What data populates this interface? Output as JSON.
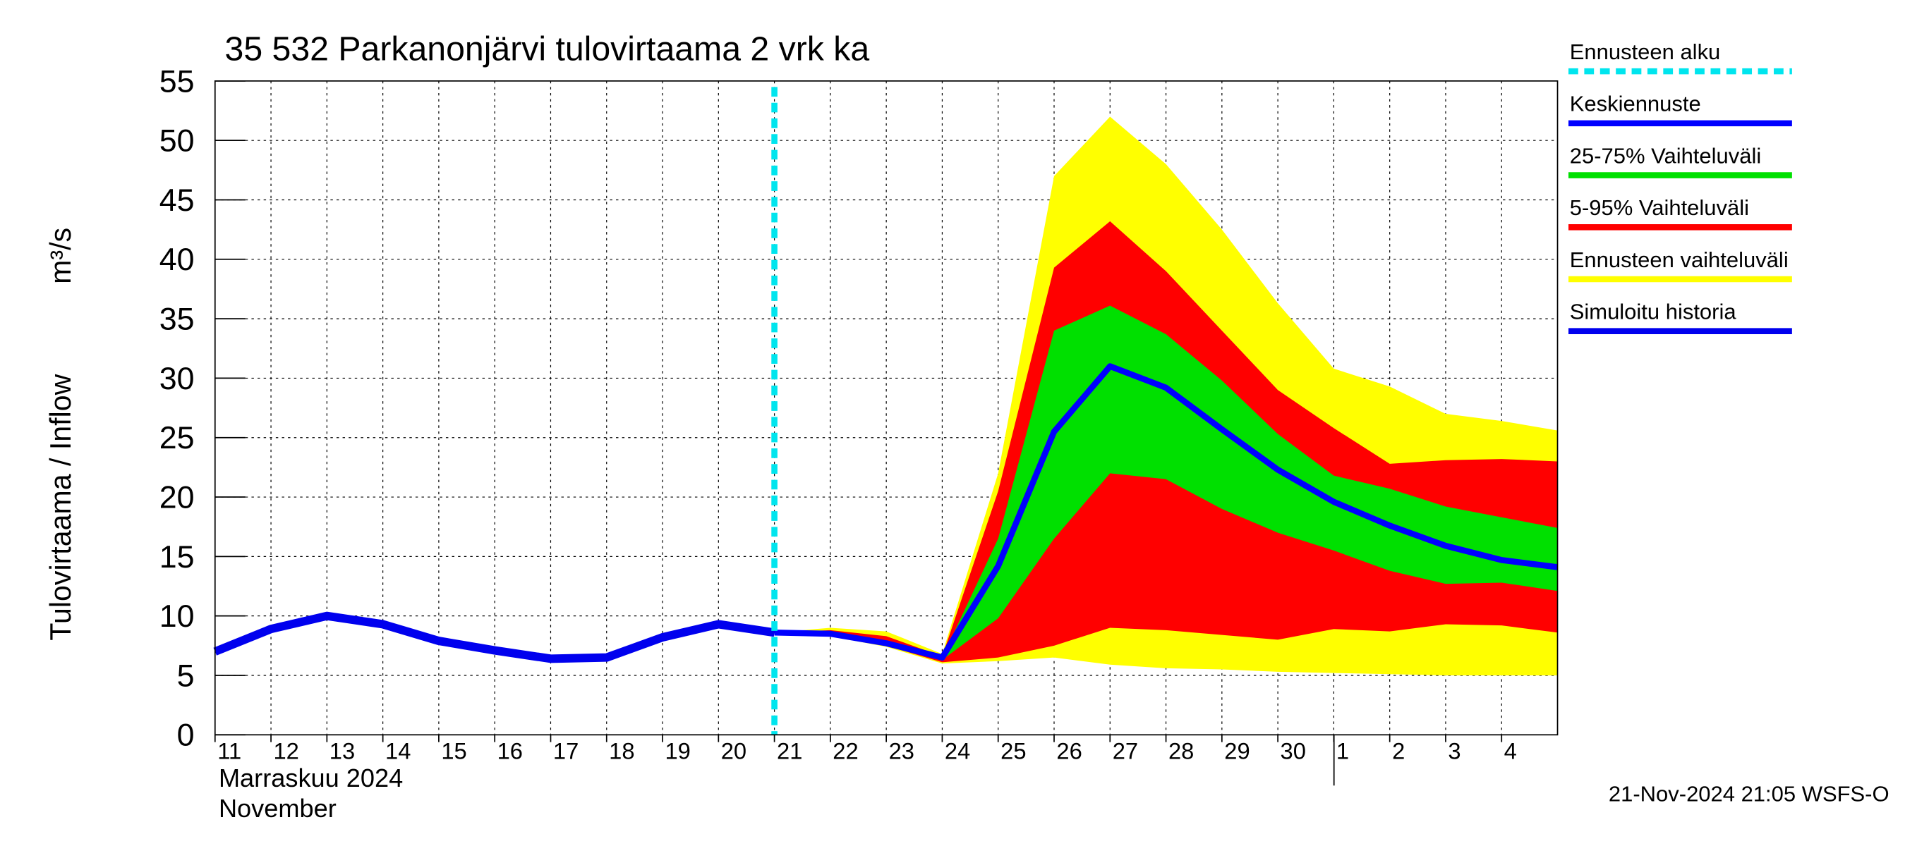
{
  "chart_data": {
    "type": "forecast",
    "title": "35 532 Parkanonjärvi tulovirtaama 2 vrk ka",
    "ylabel": "Tulovirtaama / Inflow",
    "yunit": "m³/s",
    "month_label": "Marraskuu 2024",
    "month_label_en": "November",
    "footer": "21-Nov-2024 21:05 WSFS-O",
    "xlim": [
      "2024-11-11",
      "2024-12-05"
    ],
    "xticks": [
      {
        "value": "2024-11-11",
        "label": "11"
      },
      {
        "value": "2024-11-12",
        "label": "12"
      },
      {
        "value": "2024-11-13",
        "label": "13"
      },
      {
        "value": "2024-11-14",
        "label": "14"
      },
      {
        "value": "2024-11-15",
        "label": "15"
      },
      {
        "value": "2024-11-16",
        "label": "16"
      },
      {
        "value": "2024-11-17",
        "label": "17"
      },
      {
        "value": "2024-11-18",
        "label": "18"
      },
      {
        "value": "2024-11-19",
        "label": "19"
      },
      {
        "value": "2024-11-20",
        "label": "20"
      },
      {
        "value": "2024-11-21",
        "label": "21"
      },
      {
        "value": "2024-11-22",
        "label": "22"
      },
      {
        "value": "2024-11-23",
        "label": "23"
      },
      {
        "value": "2024-11-24",
        "label": "24"
      },
      {
        "value": "2024-11-25",
        "label": "25"
      },
      {
        "value": "2024-11-26",
        "label": "26"
      },
      {
        "value": "2024-11-27",
        "label": "27"
      },
      {
        "value": "2024-11-28",
        "label": "28"
      },
      {
        "value": "2024-11-29",
        "label": "29"
      },
      {
        "value": "2024-11-30",
        "label": "30"
      },
      {
        "value": "2024-12-01",
        "label": "1"
      },
      {
        "value": "2024-12-02",
        "label": "2"
      },
      {
        "value": "2024-12-03",
        "label": "3"
      },
      {
        "value": "2024-12-04",
        "label": "4"
      }
    ],
    "ylim": [
      0,
      55
    ],
    "yticks": [
      0,
      5,
      10,
      15,
      20,
      25,
      30,
      35,
      40,
      45,
      50,
      55
    ],
    "grid": true,
    "forecast_start": {
      "name": "Ennusteen alku",
      "x": "2024-11-21",
      "color": "#00e5ee"
    },
    "forecast_x": [
      "2024-11-21",
      "2024-11-22",
      "2024-11-23",
      "2024-11-24",
      "2024-11-25",
      "2024-11-26",
      "2024-11-27",
      "2024-11-28",
      "2024-11-29",
      "2024-11-30",
      "2024-12-01",
      "2024-12-02",
      "2024-12-03",
      "2024-12-04",
      "2024-12-05"
    ],
    "bands": [
      {
        "name": "25-75% Vaihteluväli",
        "color": "#00e000",
        "upper": [
          8.6,
          8.6,
          7.9,
          6.5,
          16.5,
          34.0,
          36.1,
          33.7,
          29.8,
          25.3,
          21.8,
          20.7,
          19.2,
          18.3,
          17.4
        ],
        "lower": [
          8.6,
          8.5,
          7.6,
          6.3,
          9.8,
          16.5,
          22.0,
          21.5,
          19.0,
          17.0,
          15.5,
          13.8,
          12.7,
          12.8,
          12.1
        ]
      },
      {
        "name": "5-95% Vaihteluväli",
        "color": "#ff0000",
        "upper": [
          8.6,
          8.8,
          8.3,
          6.6,
          20.5,
          39.3,
          43.2,
          39.0,
          34.0,
          29.0,
          25.8,
          22.8,
          23.1,
          23.2,
          23.0
        ],
        "lower": [
          8.6,
          8.4,
          7.5,
          6.1,
          6.5,
          7.5,
          9.0,
          8.8,
          8.4,
          8.0,
          8.9,
          8.7,
          9.3,
          9.2,
          8.6
        ]
      },
      {
        "name": "Ennusteen vaihteluväli",
        "color": "#ffff00",
        "upper": [
          8.6,
          9.0,
          8.7,
          6.8,
          22.0,
          47.0,
          52.0,
          48.0,
          42.5,
          36.3,
          30.8,
          29.3,
          27.0,
          26.4,
          25.6
        ],
        "lower": [
          8.6,
          8.3,
          7.4,
          6.0,
          6.2,
          6.5,
          5.9,
          5.6,
          5.5,
          5.3,
          5.2,
          5.1,
          5.0,
          5.0,
          5.0
        ]
      }
    ],
    "series": [
      {
        "name": "Keskiennuste",
        "color": "#0000ff",
        "x_ref": "forecast_x",
        "values": [
          8.6,
          8.5,
          7.7,
          6.5,
          14.2,
          25.5,
          31.0,
          29.2,
          25.7,
          22.3,
          19.6,
          17.6,
          15.9,
          14.7,
          14.1
        ]
      },
      {
        "name": "Simuloitu historia",
        "color": "#0000ee",
        "x": [
          "2024-11-11",
          "2024-11-12",
          "2024-11-13",
          "2024-11-14",
          "2024-11-15",
          "2024-11-16",
          "2024-11-17",
          "2024-11-18",
          "2024-11-19",
          "2024-11-20",
          "2024-11-21"
        ],
        "values": [
          7.0,
          8.9,
          10.0,
          9.3,
          7.9,
          7.1,
          6.4,
          6.5,
          8.2,
          9.3,
          8.6
        ]
      }
    ]
  }
}
